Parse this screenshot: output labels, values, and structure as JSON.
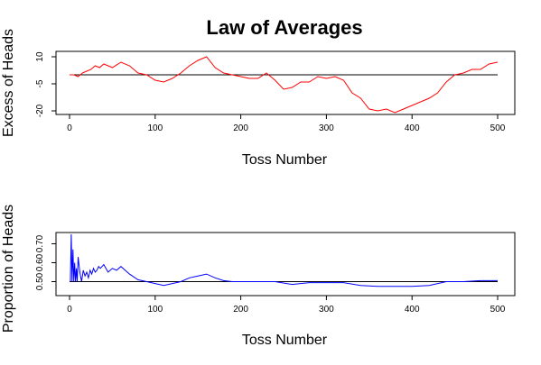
{
  "title": "Law of Averages",
  "chart_data": [
    {
      "type": "line",
      "xlabel": "Toss Number",
      "ylabel": "Excess of Heads",
      "xlim": [
        0,
        500
      ],
      "ylim": [
        -20,
        10
      ],
      "xticks": [
        "0",
        "100",
        "200",
        "300",
        "400",
        "500"
      ],
      "yticks": [
        "10",
        "-5",
        "-20"
      ],
      "reference_line": 0,
      "series": [
        {
          "color": "#ff0000",
          "x": [
            0,
            5,
            10,
            15,
            20,
            25,
            30,
            35,
            40,
            45,
            50,
            60,
            70,
            80,
            90,
            100,
            110,
            120,
            130,
            140,
            150,
            160,
            170,
            180,
            190,
            200,
            210,
            220,
            230,
            240,
            250,
            260,
            270,
            280,
            290,
            300,
            310,
            320,
            330,
            340,
            350,
            360,
            370,
            380,
            390,
            400,
            410,
            420,
            430,
            440,
            450,
            460,
            470,
            480,
            490,
            500
          ],
          "y": [
            0,
            0,
            -1,
            1,
            2,
            3,
            5,
            4,
            6,
            5,
            4,
            7,
            5,
            1,
            0,
            -3,
            -4,
            -2,
            1,
            5,
            8,
            10,
            4,
            1,
            0,
            -1,
            -2,
            -2,
            1,
            -3,
            -8,
            -7,
            -4,
            -4,
            -1,
            -2,
            -1,
            -3,
            -10,
            -13,
            -19,
            -20,
            -19,
            -21,
            -19,
            -17,
            -15,
            -13,
            -10,
            -4,
            0,
            1,
            3,
            3,
            6,
            7
          ]
        }
      ]
    },
    {
      "type": "line",
      "xlabel": "Toss Number",
      "ylabel": "Proportion of Heads",
      "xlim": [
        0,
        500
      ],
      "ylim": [
        0.45,
        0.75
      ],
      "xticks": [
        "0",
        "100",
        "200",
        "300",
        "400",
        "500"
      ],
      "yticks": [
        "0.50",
        "0.60",
        "0.70"
      ],
      "reference_line": 0.5,
      "series": [
        {
          "color": "#0000ff",
          "x": [
            1,
            2,
            3,
            4,
            5,
            6,
            7,
            8,
            9,
            10,
            12,
            14,
            16,
            18,
            20,
            22,
            24,
            26,
            28,
            30,
            32,
            34,
            36,
            38,
            40,
            45,
            50,
            55,
            60,
            70,
            80,
            90,
            100,
            110,
            120,
            130,
            140,
            150,
            160,
            170,
            180,
            190,
            200,
            220,
            240,
            260,
            280,
            300,
            320,
            340,
            360,
            380,
            400,
            420,
            440,
            460,
            480,
            500
          ],
          "y": [
            0.5,
            0.75,
            0.5,
            0.67,
            0.5,
            0.6,
            0.5,
            0.57,
            0.5,
            0.63,
            0.55,
            0.5,
            0.56,
            0.53,
            0.55,
            0.52,
            0.56,
            0.54,
            0.57,
            0.55,
            0.56,
            0.58,
            0.57,
            0.58,
            0.59,
            0.55,
            0.57,
            0.56,
            0.58,
            0.54,
            0.51,
            0.5,
            0.49,
            0.48,
            0.49,
            0.5,
            0.52,
            0.53,
            0.54,
            0.52,
            0.505,
            0.5,
            0.5,
            0.5,
            0.5,
            0.485,
            0.495,
            0.495,
            0.495,
            0.48,
            0.475,
            0.475,
            0.475,
            0.48,
            0.5,
            0.5,
            0.505,
            0.505
          ]
        }
      ]
    }
  ]
}
